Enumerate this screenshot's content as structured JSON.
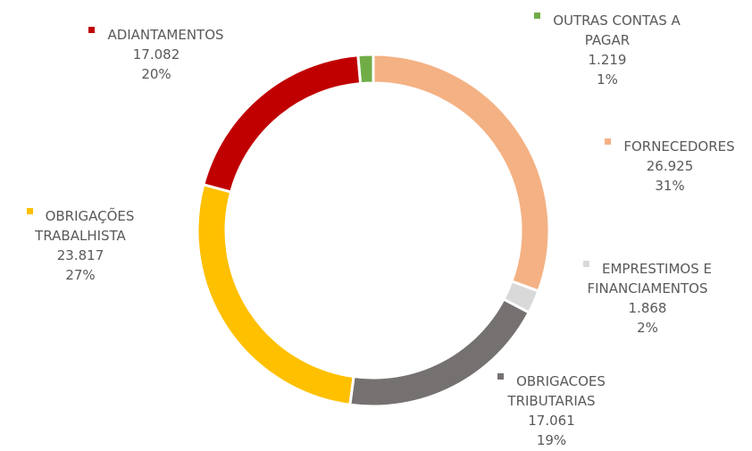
{
  "chart_data": {
    "type": "donut",
    "categories": [
      "FORNECEDORES",
      "EMPRESTIMOS E FINANCIAMENTOS",
      "OBRIGACOES TRIBUTARIAS",
      "OBRIGAÇÕES TRABALHISTA",
      "ADIANTAMENTOS",
      "OUTRAS CONTAS A PAGAR"
    ],
    "values": [
      26925,
      1868,
      17061,
      23817,
      17082,
      1219
    ],
    "value_labels": [
      "26.925",
      "1.868",
      "17.061",
      "23.817",
      "17.082",
      "1.219"
    ],
    "percent_labels": [
      "31%",
      "2%",
      "19%",
      "27%",
      "20%",
      "1%"
    ],
    "colors": [
      "#f4b183",
      "#d9d9d9",
      "#767171",
      "#ffc000",
      "#c00000",
      "#70ad47"
    ]
  }
}
